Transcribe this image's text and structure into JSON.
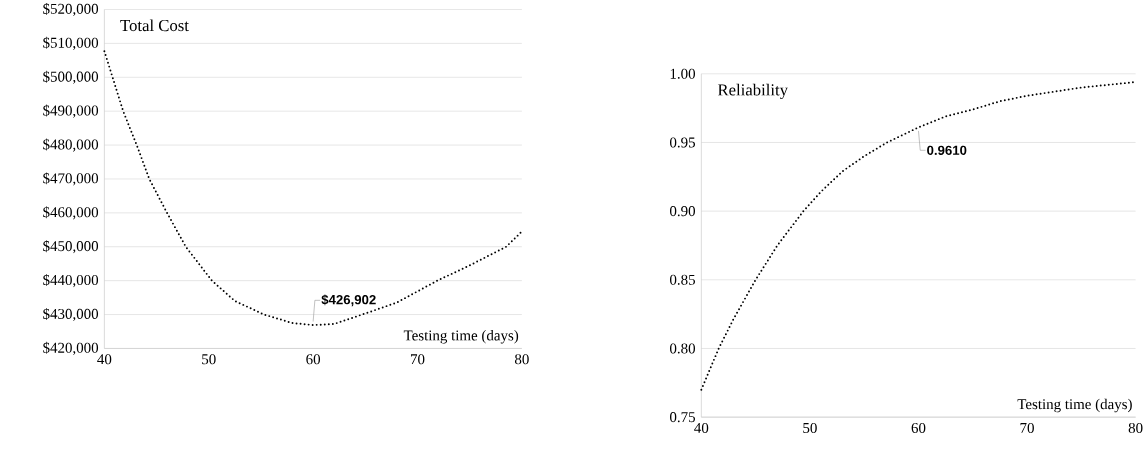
{
  "chart_data": [
    {
      "type": "line",
      "title": "Total Cost",
      "xlabel": "Testing time (days)",
      "line_style": "dotted",
      "marker": "none",
      "grid": "y",
      "series": [
        {
          "color": "#000000",
          "x": [
            40,
            41.8,
            43.1,
            44.3,
            46,
            47.8,
            50.3,
            52.5,
            55.3,
            58,
            60,
            62,
            64.7,
            68,
            71.9,
            75,
            78.5,
            80
          ],
          "values": [
            507700,
            490000,
            480000,
            470000,
            460000,
            450000,
            440000,
            434000,
            430000,
            427500,
            426900,
            427200,
            430000,
            433500,
            440000,
            444500,
            450000,
            454500
          ]
        }
      ],
      "xlim": [
        40,
        80
      ],
      "xticks": [
        40,
        50,
        60,
        70,
        80
      ],
      "ylim": [
        420000,
        520000
      ],
      "yticks": [
        {
          "value": 420000,
          "label": "$420,000"
        },
        {
          "value": 430000,
          "label": "$430,000"
        },
        {
          "value": 440000,
          "label": "$440,000"
        },
        {
          "value": 450000,
          "label": "$450,000"
        },
        {
          "value": 460000,
          "label": "$460,000"
        },
        {
          "value": 470000,
          "label": "$470,000"
        },
        {
          "value": 480000,
          "label": "$480,000"
        },
        {
          "value": 490000,
          "label": "$490,000"
        },
        {
          "value": 500000,
          "label": "$500,000"
        },
        {
          "value": 510000,
          "label": "$510,000"
        },
        {
          "value": 520000,
          "label": "$520,000"
        }
      ],
      "annotations": [
        {
          "text": "$426,902",
          "x": 60,
          "y": 426902
        }
      ]
    },
    {
      "type": "line",
      "title": "Reliability",
      "xlabel": "Testing time (days)",
      "line_style": "dotted",
      "marker": "none",
      "grid": "y",
      "series": [
        {
          "color": "#000000",
          "x": [
            40,
            41.6,
            43,
            45,
            47,
            49.4,
            51,
            53,
            55,
            57.1,
            60,
            62.5,
            65,
            67.5,
            70,
            72.5,
            75,
            77.5,
            80
          ],
          "values": [
            0.77,
            0.8,
            0.822,
            0.85,
            0.875,
            0.9,
            0.914,
            0.929,
            0.94,
            0.95,
            0.961,
            0.969,
            0.974,
            0.98,
            0.984,
            0.987,
            0.99,
            0.992,
            0.994
          ]
        }
      ],
      "xlim": [
        40,
        80
      ],
      "xticks": [
        40,
        50,
        60,
        70,
        80
      ],
      "ylim": [
        0.75,
        1.0
      ],
      "yticks": [
        {
          "value": 0.75,
          "label": "0.75"
        },
        {
          "value": 0.8,
          "label": "0.80"
        },
        {
          "value": 0.85,
          "label": "0.85"
        },
        {
          "value": 0.9,
          "label": "0.90"
        },
        {
          "value": 0.95,
          "label": "0.95"
        },
        {
          "value": 1.0,
          "label": "1.00"
        }
      ],
      "annotations": [
        {
          "text": "0.9610",
          "x": 60,
          "y": 0.961
        }
      ]
    }
  ]
}
